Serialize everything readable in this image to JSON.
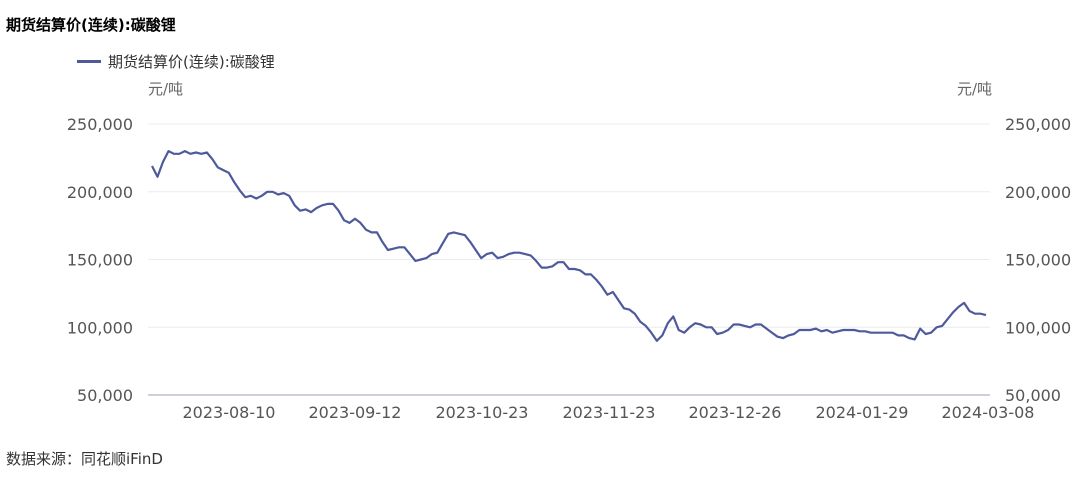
{
  "title": "期货结算价(连续):碳酸锂",
  "legend": {
    "label": "期货结算价(连续):碳酸锂",
    "color": "#4e5a9b"
  },
  "source": "数据来源：同花顺iFinD",
  "chart_data": {
    "type": "line",
    "title": "期货结算价(连续):碳酸锂",
    "y_unit_left": "元/吨",
    "y_unit_right": "元/吨",
    "ylim": [
      50000,
      250000
    ],
    "y_ticks": [
      "50,000",
      "100,000",
      "150,000",
      "200,000",
      "250,000"
    ],
    "x_ticks": [
      "2023-08-10",
      "2023-09-12",
      "2023-10-23",
      "2023-11-23",
      "2023-12-26",
      "2024-01-29",
      "2024-03-08"
    ],
    "grid": true,
    "legend_position": "top-left",
    "series": [
      {
        "name": "期货结算价(连续):碳酸锂",
        "color": "#4e5a9b",
        "values": [
          219000,
          211000,
          222000,
          230000,
          228000,
          228000,
          230000,
          228000,
          229000,
          228000,
          229000,
          224000,
          218000,
          216000,
          214000,
          207000,
          201000,
          196000,
          197000,
          195000,
          197000,
          200000,
          200000,
          198000,
          199000,
          197000,
          190000,
          186000,
          187000,
          185000,
          188000,
          190000,
          191000,
          191000,
          186000,
          179000,
          177000,
          180000,
          177000,
          172000,
          170000,
          170000,
          163000,
          157000,
          158000,
          159000,
          159000,
          154000,
          149000,
          150000,
          151000,
          154000,
          155000,
          162000,
          169000,
          170000,
          169000,
          168000,
          163000,
          157000,
          151000,
          154000,
          155000,
          151000,
          152000,
          154000,
          155000,
          155000,
          154000,
          153000,
          149000,
          144000,
          144000,
          145000,
          148000,
          148000,
          143000,
          143000,
          142000,
          139000,
          139000,
          135000,
          130000,
          124000,
          126000,
          120000,
          114000,
          113000,
          110000,
          104000,
          101000,
          96000,
          90000,
          94000,
          103000,
          108000,
          98000,
          96000,
          100000,
          103000,
          102000,
          100000,
          100000,
          95000,
          96000,
          98000,
          102000,
          102000,
          101000,
          100000,
          102000,
          102000,
          99000,
          96000,
          93000,
          92000,
          94000,
          95000,
          98000,
          98000,
          98000,
          99000,
          97000,
          98000,
          96000,
          97000,
          98000,
          98000,
          98000,
          97000,
          97000,
          96000,
          96000,
          96000,
          96000,
          96000,
          94000,
          94000,
          92000,
          91000,
          99000,
          95000,
          96000,
          100000,
          101000,
          106000,
          111000,
          115000,
          118000,
          112000,
          110000,
          110000,
          109000
        ]
      }
    ]
  }
}
